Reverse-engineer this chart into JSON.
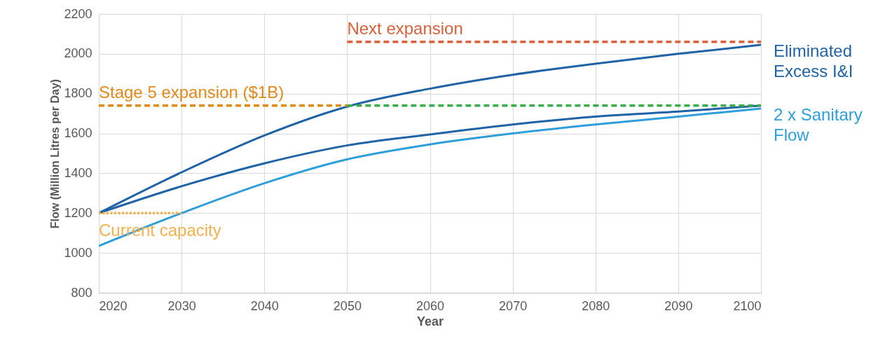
{
  "chart_data": {
    "type": "line",
    "xlabel": "Year",
    "ylabel": "Flow (Million Litres per Day)",
    "xlim": [
      2020,
      2100
    ],
    "xticks": [
      2020,
      2030,
      2040,
      2050,
      2060,
      2070,
      2080,
      2090,
      2100
    ],
    "ylim": [
      800,
      2200
    ],
    "yticks": [
      800,
      1000,
      1200,
      1400,
      1600,
      1800,
      2000,
      2200
    ],
    "grid": true,
    "legend": false,
    "marker": "none",
    "series": [
      {
        "name": "Eliminated Excess I&I",
        "color": "#1f63a6",
        "x": [
          2020,
          2030,
          2040,
          2050,
          2060,
          2070,
          2080,
          2090,
          2100
        ],
        "values": [
          1200,
          1405,
          1590,
          1735,
          1825,
          1895,
          1950,
          2000,
          2045
        ]
      },
      {
        "color": "#1f63a6",
        "x": [
          2020,
          2030,
          2040,
          2050,
          2060,
          2070,
          2080,
          2090,
          2100
        ],
        "values": [
          1200,
          1335,
          1450,
          1540,
          1595,
          1645,
          1685,
          1710,
          1740
        ]
      },
      {
        "name": "2 x Sanitary Flow",
        "color": "#2e9fdb",
        "x": [
          2020,
          2030,
          2040,
          2050,
          2060,
          2070,
          2080,
          2090,
          2100
        ],
        "values": [
          1035,
          1200,
          1350,
          1470,
          1545,
          1600,
          1645,
          1685,
          1725
        ]
      },
      {
        "color": "#f5b04e",
        "line_style": "dotted",
        "x": [
          2020,
          2030
        ],
        "values": [
          1200,
          1200
        ]
      },
      {
        "color": "#e08a1a",
        "line_style": "dashed",
        "x": [
          2020,
          2050
        ],
        "values": [
          1740,
          1740
        ]
      },
      {
        "color": "#d9603b",
        "line_style": "dashed",
        "x": [
          2050,
          2100
        ],
        "values": [
          2060,
          2060
        ]
      },
      {
        "color": "#3aad48",
        "line_style": "dashed",
        "x": [
          2050,
          2100
        ],
        "values": [
          1740,
          1740
        ]
      }
    ],
    "annotations": [
      "Current capacity",
      "Stage 5 expansion ($1B)",
      "Next expansion"
    ]
  }
}
